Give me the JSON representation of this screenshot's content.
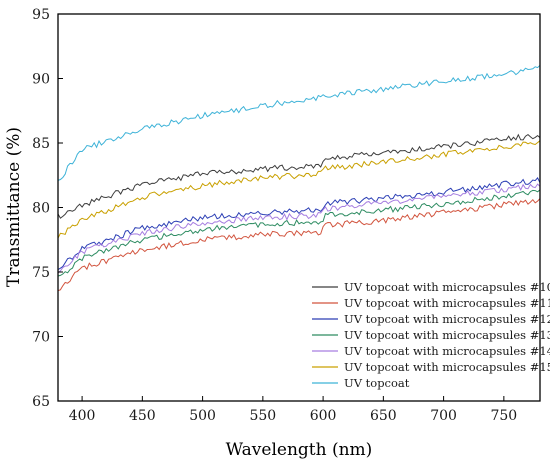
{
  "chart_data": {
    "type": "line",
    "title": "",
    "xlabel": "Wavelength (nm)",
    "ylabel": "Transmittance (%)",
    "xlim": [
      380,
      780
    ],
    "ylim": [
      65,
      95
    ],
    "xticks": [
      400,
      450,
      500,
      550,
      600,
      650,
      700,
      750
    ],
    "yticks": [
      65,
      70,
      75,
      80,
      85,
      90,
      95
    ],
    "grid": false,
    "legend_position": "bottom-right",
    "series": [
      {
        "name": "UV topcoat with microcapsules #10",
        "color": "#3d3d3d",
        "x": [
          380,
          400,
          450,
          500,
          550,
          598,
          602,
          650,
          700,
          750,
          780
        ],
        "y": [
          79.3,
          80.2,
          81.8,
          82.6,
          83.0,
          83.2,
          83.8,
          84.2,
          84.7,
          85.3,
          85.6
        ]
      },
      {
        "name": "UV topcoat with microcapsules #11",
        "color": "#d2553f",
        "x": [
          380,
          400,
          450,
          500,
          550,
          598,
          602,
          650,
          700,
          750,
          780
        ],
        "y": [
          73.5,
          75.3,
          76.7,
          77.5,
          77.9,
          78.1,
          78.6,
          79.0,
          79.6,
          80.2,
          80.6
        ]
      },
      {
        "name": "UV topcoat with microcapsules #12",
        "color": "#2c3fb5",
        "x": [
          380,
          400,
          450,
          500,
          550,
          598,
          602,
          650,
          700,
          750,
          780
        ],
        "y": [
          75.3,
          76.8,
          78.4,
          79.2,
          79.6,
          79.8,
          80.3,
          80.7,
          81.2,
          81.8,
          82.1
        ]
      },
      {
        "name": "UV topcoat with microcapsules #13",
        "color": "#2e8c62",
        "x": [
          380,
          400,
          450,
          500,
          550,
          598,
          602,
          650,
          700,
          750,
          780
        ],
        "y": [
          74.5,
          76.1,
          77.5,
          78.3,
          78.7,
          78.9,
          79.4,
          79.8,
          80.3,
          80.9,
          81.2
        ]
      },
      {
        "name": "UV topcoat with microcapsules #14",
        "color": "#a67ee0",
        "x": [
          380,
          400,
          450,
          500,
          550,
          598,
          602,
          650,
          700,
          750,
          780
        ],
        "y": [
          75.0,
          76.6,
          78.0,
          78.8,
          79.2,
          79.4,
          79.9,
          80.4,
          80.9,
          81.4,
          81.8
        ]
      },
      {
        "name": "UV topcoat with microcapsules #15",
        "color": "#c9a000",
        "x": [
          380,
          400,
          450,
          500,
          550,
          598,
          602,
          650,
          700,
          750,
          780
        ],
        "y": [
          77.7,
          79.0,
          80.8,
          81.7,
          82.3,
          82.6,
          83.0,
          83.5,
          84.1,
          84.7,
          85.0
        ]
      },
      {
        "name": "UV topcoat",
        "color": "#3fb3d8",
        "x": [
          380,
          400,
          450,
          500,
          550,
          600,
          650,
          700,
          750,
          780
        ],
        "y": [
          82.0,
          84.5,
          86.1,
          87.1,
          87.9,
          88.6,
          89.2,
          89.8,
          90.3,
          90.8
        ]
      }
    ]
  }
}
